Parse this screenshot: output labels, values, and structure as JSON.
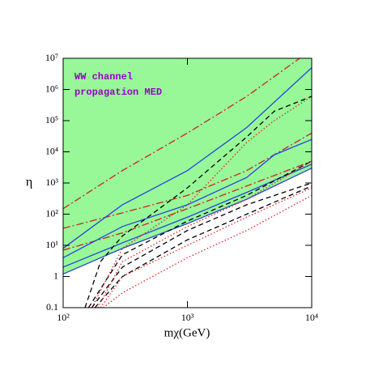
{
  "chart_data": {
    "type": "line",
    "xlabel": "mχ(GeV)",
    "ylabel": "η",
    "annotations": [
      "WW channel",
      "propagation MED"
    ],
    "xscale": "log",
    "yscale": "log",
    "xlim": [
      100,
      10000
    ],
    "ylim": [
      0.1,
      10000000
    ],
    "xticks": [
      {
        "value": 100,
        "label": "10²"
      },
      {
        "value": 1000,
        "label": "10³"
      },
      {
        "value": 10000,
        "label": "10⁴"
      }
    ],
    "yticks": [
      0.1,
      1,
      {
        "value": 10,
        "label": "10¹"
      },
      {
        "value": 100,
        "label": "10²"
      },
      {
        "value": 1000,
        "label": "10³"
      },
      {
        "value": 10000,
        "label": "10⁴"
      },
      {
        "value": 100000,
        "label": "10⁵"
      },
      {
        "value": 1000000,
        "label": "10⁶"
      },
      {
        "value": 10000000,
        "label": "10⁷"
      }
    ],
    "area": {
      "color": "#98f898",
      "x": [
        100,
        300,
        1000,
        3000,
        10000
      ],
      "values": [
        1.2,
        8,
        50,
        300,
        3000
      ]
    },
    "series": [
      {
        "color": "#cc2222",
        "dash": "dashdot",
        "x": [
          100,
          300,
          1000,
          3000,
          8000
        ],
        "values": [
          150,
          2500,
          40000,
          600000,
          10000000
        ]
      },
      {
        "color": "#cc2222",
        "dash": "dashdot",
        "x": [
          100,
          300,
          1000,
          3000,
          10000
        ],
        "values": [
          35,
          110,
          400,
          2500,
          40000
        ]
      },
      {
        "color": "#cc2222",
        "dash": "dashdot",
        "x": [
          100,
          300,
          1000,
          3000,
          10000
        ],
        "values": [
          7,
          25,
          150,
          800,
          5000
        ]
      },
      {
        "color": "#2244dd",
        "dash": "solid",
        "x": [
          100,
          300,
          1000,
          3000,
          10000
        ],
        "values": [
          8,
          200,
          2500,
          60000,
          5000000
        ]
      },
      {
        "color": "#2244dd",
        "dash": "solid",
        "x": [
          100,
          300,
          1000,
          3000,
          5000,
          10000
        ],
        "values": [
          4,
          40,
          200,
          1500,
          8000,
          25000
        ]
      },
      {
        "color": "#2244dd",
        "dash": "solid",
        "x": [
          100,
          300,
          1000,
          3000,
          10000
        ],
        "values": [
          2,
          12,
          80,
          500,
          4000
        ]
      },
      {
        "color": "#2244dd",
        "dash": "solid",
        "x": [
          100,
          300,
          1000,
          3000,
          10000
        ],
        "values": [
          1.2,
          8,
          50,
          300,
          3000
        ]
      },
      {
        "color": "#000000",
        "dash": "dashed",
        "x": [
          150,
          200,
          300,
          1000,
          3000,
          5000,
          10000
        ],
        "values": [
          0.1,
          3,
          20,
          700,
          30000,
          200000,
          600000
        ]
      },
      {
        "color": "#000000",
        "dash": "dashed",
        "x": [
          160,
          300,
          1000,
          3000,
          10000
        ],
        "values": [
          0.1,
          5,
          60,
          400,
          5000
        ]
      },
      {
        "color": "#000000",
        "dash": "dashed",
        "x": [
          170,
          300,
          1000,
          3000,
          10000
        ],
        "values": [
          0.1,
          2,
          30,
          200,
          1000
        ]
      },
      {
        "color": "#000000",
        "dash": "dashed",
        "x": [
          180,
          300,
          1000,
          3000,
          10000
        ],
        "values": [
          0.1,
          1,
          15,
          100,
          800
        ]
      },
      {
        "color": "#dd2222",
        "dash": "dotted",
        "x": [
          170,
          300,
          1000,
          3000,
          5000,
          10000
        ],
        "values": [
          0.1,
          8,
          200,
          20000,
          100000,
          600000
        ]
      },
      {
        "color": "#dd2222",
        "dash": "dotted",
        "x": [
          190,
          300,
          1000,
          3000,
          10000
        ],
        "values": [
          0.1,
          3,
          40,
          300,
          5000
        ]
      },
      {
        "color": "#dd2222",
        "dash": "dotted",
        "x": [
          200,
          300,
          1000,
          3000,
          10000
        ],
        "values": [
          0.1,
          1,
          10,
          80,
          700
        ]
      },
      {
        "color": "#dd2222",
        "dash": "dotted",
        "x": [
          210,
          300,
          1000,
          3000,
          10000
        ],
        "values": [
          0.1,
          0.3,
          4,
          30,
          400
        ]
      }
    ]
  }
}
